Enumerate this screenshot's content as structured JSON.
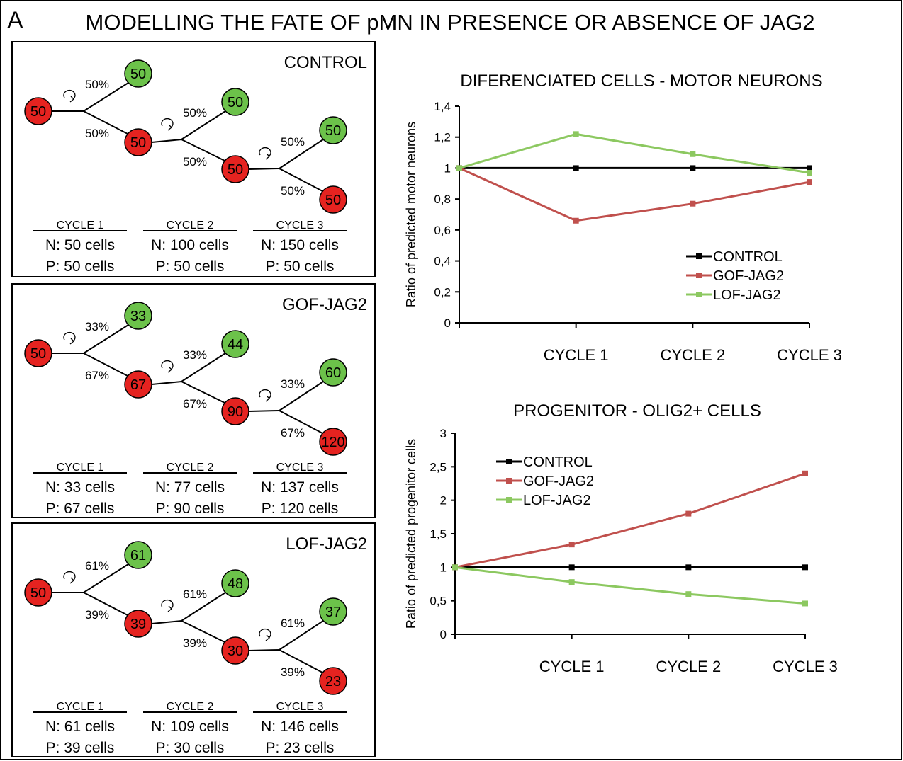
{
  "panel_letter": "A",
  "title": "MODELLING THE FATE OF pMN IN PRESENCE OR ABSENCE OF JAG2",
  "models": [
    {
      "name": "CONTROL",
      "root": "50",
      "cycles": [
        {
          "pct_up": "50%",
          "pct_down": "50%",
          "green": "50",
          "red": "50",
          "label": "CYCLE 1",
          "n": "N: 50 cells",
          "p": "P: 50 cells"
        },
        {
          "pct_up": "50%",
          "pct_down": "50%",
          "green": "50",
          "red": "50",
          "label": "CYCLE 2",
          "n": "N: 100 cells",
          "p": "P: 50 cells"
        },
        {
          "pct_up": "50%",
          "pct_down": "50%",
          "green": "50",
          "red": "50",
          "label": "CYCLE 3",
          "n": "N: 150 cells",
          "p": "P: 50 cells"
        }
      ]
    },
    {
      "name": "GOF-JAG2",
      "root": "50",
      "cycles": [
        {
          "pct_up": "33%",
          "pct_down": "67%",
          "green": "33",
          "red": "67",
          "label": "CYCLE 1",
          "n": "N: 33 cells",
          "p": "P: 67 cells"
        },
        {
          "pct_up": "33%",
          "pct_down": "67%",
          "green": "44",
          "red": "90",
          "label": "CYCLE 2",
          "n": "N: 77 cells",
          "p": "P: 90 cells"
        },
        {
          "pct_up": "33%",
          "pct_down": "67%",
          "green": "60",
          "red": "120",
          "label": "CYCLE 3",
          "n": "N: 137 cells",
          "p": "P: 120 cells"
        }
      ]
    },
    {
      "name": "LOF-JAG2",
      "root": "50",
      "cycles": [
        {
          "pct_up": "61%",
          "pct_down": "39%",
          "green": "61",
          "red": "39",
          "label": "CYCLE 1",
          "n": "N: 61 cells",
          "p": "P: 39 cells"
        },
        {
          "pct_up": "61%",
          "pct_down": "39%",
          "green": "48",
          "red": "30",
          "label": "CYCLE 2",
          "n": "N: 109 cells",
          "p": "P: 30 cells"
        },
        {
          "pct_up": "61%",
          "pct_down": "39%",
          "green": "37",
          "red": "23",
          "label": "CYCLE 3",
          "n": "N: 146 cells",
          "p": "P: 23 cells"
        }
      ]
    }
  ],
  "colors": {
    "green_cell": "#6cc24a",
    "red_cell": "#e52320",
    "control_line": "#000000",
    "gof_line": "#c0504d",
    "lof_line": "#8cc860"
  },
  "chart_data": [
    {
      "type": "line",
      "title": "DIFERENCIATED CELLS - MOTOR NEURONS",
      "ylabel": "Ratio of  predicted motor neurons",
      "xlabel": "",
      "categories": [
        "",
        "CYCLE 1",
        "CYCLE 2",
        "CYCLE 3"
      ],
      "ylim": [
        0,
        1.4
      ],
      "yticks": [
        "0",
        "0,2",
        "0,4",
        "0,6",
        "0,8",
        "1",
        "1,2",
        "1,4"
      ],
      "legend_position": "bottom-right",
      "series": [
        {
          "name": "CONTROL",
          "values": [
            1,
            1,
            1,
            1
          ]
        },
        {
          "name": "GOF-JAG2",
          "values": [
            1,
            0.66,
            0.77,
            0.91
          ]
        },
        {
          "name": "LOF-JAG2",
          "values": [
            1,
            1.22,
            1.09,
            0.97
          ]
        }
      ]
    },
    {
      "type": "line",
      "title": "PROGENITOR - OLIG2+ CELLS",
      "ylabel": "Ratio of  predicted progenitor cells",
      "xlabel": "",
      "categories": [
        "",
        "CYCLE 1",
        "CYCLE 2",
        "CYCLE 3"
      ],
      "ylim": [
        0,
        3
      ],
      "yticks": [
        "0",
        "0,5",
        "1",
        "1,5",
        "2",
        "2,5",
        "3"
      ],
      "legend_position": "top-left",
      "series": [
        {
          "name": "CONTROL",
          "values": [
            1,
            1,
            1,
            1
          ]
        },
        {
          "name": "GOF-JAG2",
          "values": [
            1,
            1.34,
            1.8,
            2.4
          ]
        },
        {
          "name": "LOF-JAG2",
          "values": [
            1,
            0.78,
            0.6,
            0.46
          ]
        }
      ]
    }
  ]
}
